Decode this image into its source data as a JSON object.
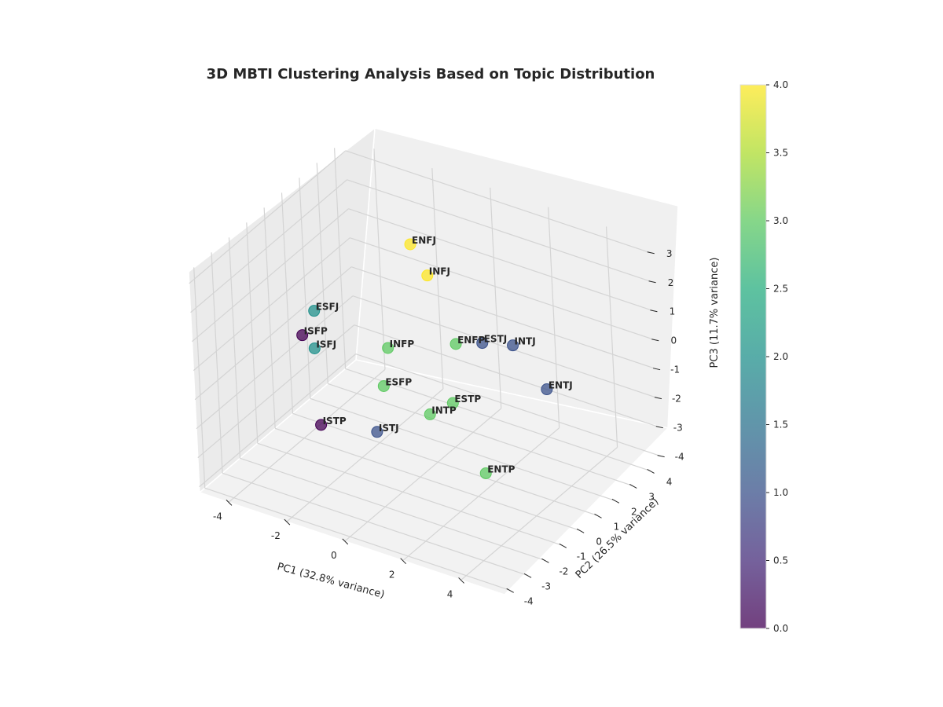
{
  "chart_data": {
    "type": "scatter",
    "title": "3D MBTI Clustering Analysis Based on Topic Distribution",
    "xlabel": "PC1 (32.8% variance)",
    "ylabel": "PC2 (26.5% variance)",
    "zlabel": "PC3 (11.7% variance)",
    "xlim": [
      -5,
      5.5
    ],
    "ylim": [
      -4.3,
      4.6
    ],
    "zlim": [
      -4.2,
      3.4
    ],
    "xticks": [
      -4,
      -2,
      0,
      2,
      4
    ],
    "yticks": [
      -4,
      -3,
      -2,
      -1,
      0,
      1,
      2,
      3,
      4
    ],
    "zticks": [
      -4,
      -3,
      -2,
      -1,
      0,
      1,
      2,
      3
    ],
    "grid": true,
    "colormap": "viridis",
    "colorbar": {
      "min": 0.0,
      "max": 4.0,
      "ticks": [
        "0.0",
        "0.5",
        "1.0",
        "1.5",
        "2.0",
        "2.5",
        "3.0",
        "3.5",
        "4.0"
      ]
    },
    "points": [
      {
        "label": "ENFJ",
        "x": -2.0,
        "y": 3.2,
        "z": 1.5,
        "cluster": 4
      },
      {
        "label": "INFJ",
        "x": -1.2,
        "y": 2.8,
        "z": 0.9,
        "cluster": 4
      },
      {
        "label": "INTJ",
        "x": 1.8,
        "y": 2.6,
        "z": -0.4,
        "cluster": 1
      },
      {
        "label": "ESTJ",
        "x": 0.8,
        "y": 2.5,
        "z": -0.6,
        "cluster": 1
      },
      {
        "label": "ENTJ",
        "x": 3.3,
        "y": 2.0,
        "z": -1.1,
        "cluster": 1
      },
      {
        "label": "ENFP",
        "x": 0.0,
        "y": 2.3,
        "z": -0.8,
        "cluster": 3
      },
      {
        "label": "ESFJ",
        "x": -4.2,
        "y": 1.2,
        "z": -0.5,
        "cluster": 2
      },
      {
        "label": "ISFJ",
        "x": -3.8,
        "y": 0.5,
        "z": -1.3,
        "cluster": 2
      },
      {
        "label": "ISFP",
        "x": -4.4,
        "y": 0.8,
        "z": -1.2,
        "cluster": 0
      },
      {
        "label": "INFP",
        "x": -2.0,
        "y": 1.7,
        "z": -1.3,
        "cluster": 3
      },
      {
        "label": "ESFP",
        "x": -1.7,
        "y": 0.9,
        "z": -2.1,
        "cluster": 3
      },
      {
        "label": "ESTP",
        "x": 0.5,
        "y": 1.2,
        "z": -2.1,
        "cluster": 3
      },
      {
        "label": "INTP",
        "x": 0.0,
        "y": 0.7,
        "z": -2.4,
        "cluster": 3
      },
      {
        "label": "ENTP",
        "x": 2.3,
        "y": 0.0,
        "z": -3.3,
        "cluster": 3
      },
      {
        "label": "ISTJ",
        "x": -1.5,
        "y": 0.1,
        "z": -3.2,
        "cluster": 1
      },
      {
        "label": "ISTP",
        "x": -3.0,
        "y": -0.6,
        "z": -3.1,
        "cluster": 0
      }
    ]
  }
}
